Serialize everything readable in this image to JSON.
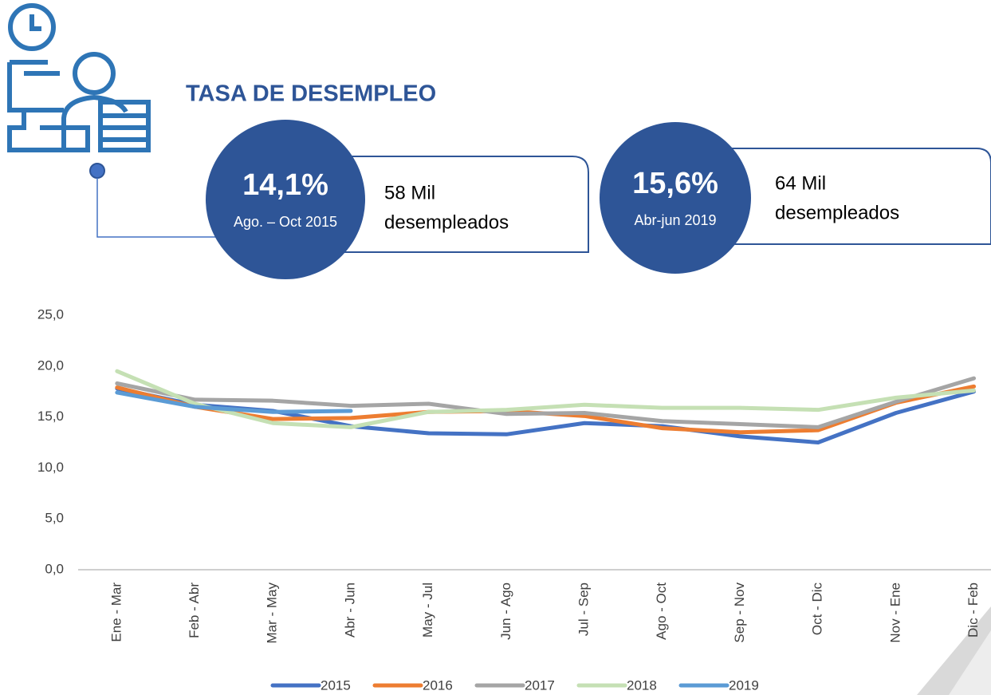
{
  "chart_data": {
    "type": "line",
    "title": "TASA DE DESEMPLEO",
    "categories": [
      "Ene - Mar",
      "Feb - Abr",
      "Mar - May",
      "Abr - Jun",
      "May - Jul",
      "Jun - Ago",
      "Jul - Sep",
      "Ago - Oct",
      "Sep - Nov",
      "Oct - Dic",
      "Nov - Ene",
      "Dic - Feb"
    ],
    "series": [
      {
        "name": "2015",
        "color": "#4472c4",
        "values": [
          17.8,
          16.2,
          15.6,
          14.1,
          13.4,
          13.3,
          14.4,
          14.1,
          13.1,
          12.5,
          15.4,
          17.5
        ]
      },
      {
        "name": "2016",
        "color": "#ed7d31",
        "values": [
          17.9,
          16.0,
          14.8,
          14.9,
          15.5,
          15.6,
          15.1,
          13.9,
          13.5,
          13.7,
          16.4,
          18.0
        ]
      },
      {
        "name": "2017",
        "color": "#a5a5a5",
        "values": [
          18.3,
          16.7,
          16.6,
          16.1,
          16.3,
          15.3,
          15.4,
          14.6,
          14.3,
          14.0,
          16.5,
          18.8
        ]
      },
      {
        "name": "2018",
        "color": "#c5e0b4",
        "values": [
          19.5,
          16.3,
          14.4,
          14.0,
          15.5,
          15.7,
          16.2,
          15.9,
          15.9,
          15.7,
          16.9,
          17.6
        ]
      },
      {
        "name": "2019",
        "color": "#5b9bd5",
        "values": [
          17.4,
          16.0,
          15.5,
          15.6,
          null,
          null,
          null,
          null,
          null,
          null,
          null,
          null
        ]
      }
    ],
    "ylim": [
      0,
      25
    ],
    "yticks": [
      {
        "value": 0,
        "label": "0,0"
      },
      {
        "value": 5,
        "label": "5,0"
      },
      {
        "value": 10,
        "label": "10,0"
      },
      {
        "value": 15,
        "label": "15,0"
      },
      {
        "value": 20,
        "label": "20,0"
      },
      {
        "value": 25,
        "label": "25,0"
      }
    ],
    "grid": false,
    "legend": "bottom"
  },
  "callouts": [
    {
      "value": "14,1%",
      "period": "Ago. – Oct 2015",
      "count": "58 Mil",
      "label": "desempleados"
    },
    {
      "value": "15,6%",
      "period": "Abr-jun 2019",
      "count": "64 Mil",
      "label": "desempleados"
    }
  ]
}
